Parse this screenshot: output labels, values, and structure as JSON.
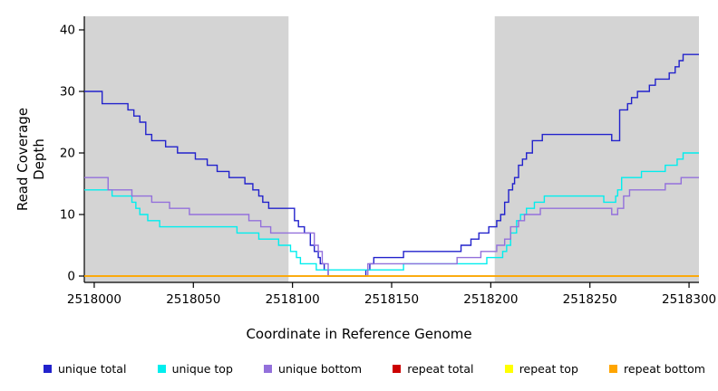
{
  "chart_data": {
    "type": "line",
    "subtype": "step-after",
    "title": "",
    "xlabel": "Coordinate in Reference Genome",
    "ylabel": "Read Coverage Depth",
    "xlim": [
      2517995,
      2518305
    ],
    "ylim": [
      0,
      40
    ],
    "x_ticks": [
      2518000,
      2518050,
      2518100,
      2518150,
      2518200,
      2518250,
      2518300
    ],
    "y_ticks": [
      0,
      10,
      20,
      30,
      40
    ],
    "grid": false,
    "legend_position": "bottom",
    "shaded_regions": [
      {
        "x0": 2517995,
        "x1": 2518098,
        "color": "#d4d4d4"
      },
      {
        "x0": 2518202,
        "x1": 2518305,
        "color": "#d4d4d4"
      }
    ],
    "series": [
      {
        "name": "unique total",
        "color": "#2222CC",
        "points": [
          [
            2517995,
            30
          ],
          [
            2518004,
            28
          ],
          [
            2518017,
            27
          ],
          [
            2518020,
            26
          ],
          [
            2518023,
            25
          ],
          [
            2518026,
            23
          ],
          [
            2518029,
            22
          ],
          [
            2518036,
            21
          ],
          [
            2518042,
            20
          ],
          [
            2518051,
            19
          ],
          [
            2518057,
            18
          ],
          [
            2518062,
            17
          ],
          [
            2518068,
            16
          ],
          [
            2518076,
            15
          ],
          [
            2518080,
            14
          ],
          [
            2518083,
            13
          ],
          [
            2518085,
            12
          ],
          [
            2518088,
            11
          ],
          [
            2518101,
            9
          ],
          [
            2518103,
            8
          ],
          [
            2518106,
            7
          ],
          [
            2518109,
            5
          ],
          [
            2518111,
            4
          ],
          [
            2518113,
            3
          ],
          [
            2518114,
            2
          ],
          [
            2518116,
            1
          ],
          [
            2518118,
            0
          ],
          [
            2518137,
            1
          ],
          [
            2518139,
            2
          ],
          [
            2518141,
            3
          ],
          [
            2518156,
            4
          ],
          [
            2518185,
            5
          ],
          [
            2518190,
            6
          ],
          [
            2518194,
            7
          ],
          [
            2518199,
            8
          ],
          [
            2518203,
            9
          ],
          [
            2518205,
            10
          ],
          [
            2518207,
            12
          ],
          [
            2518209,
            14
          ],
          [
            2518211,
            15
          ],
          [
            2518212,
            16
          ],
          [
            2518214,
            18
          ],
          [
            2518216,
            19
          ],
          [
            2518218,
            20
          ],
          [
            2518221,
            22
          ],
          [
            2518226,
            23
          ],
          [
            2518261,
            22
          ],
          [
            2518265,
            27
          ],
          [
            2518269,
            28
          ],
          [
            2518271,
            29
          ],
          [
            2518274,
            30
          ],
          [
            2518280,
            31
          ],
          [
            2518283,
            32
          ],
          [
            2518290,
            33
          ],
          [
            2518293,
            34
          ],
          [
            2518295,
            35
          ],
          [
            2518297,
            36
          ]
        ]
      },
      {
        "name": "unique top",
        "color": "#00EEEE",
        "points": [
          [
            2517995,
            14
          ],
          [
            2518009,
            13
          ],
          [
            2518019,
            12
          ],
          [
            2518021,
            11
          ],
          [
            2518023,
            10
          ],
          [
            2518027,
            9
          ],
          [
            2518033,
            8
          ],
          [
            2518072,
            7
          ],
          [
            2518083,
            6
          ],
          [
            2518093,
            5
          ],
          [
            2518099,
            4
          ],
          [
            2518102,
            3
          ],
          [
            2518104,
            2
          ],
          [
            2518112,
            1
          ],
          [
            2518156,
            2
          ],
          [
            2518198,
            3
          ],
          [
            2518206,
            4
          ],
          [
            2518208,
            5
          ],
          [
            2518210,
            7
          ],
          [
            2518213,
            9
          ],
          [
            2518215,
            10
          ],
          [
            2518218,
            11
          ],
          [
            2518222,
            12
          ],
          [
            2518227,
            13
          ],
          [
            2518257,
            12
          ],
          [
            2518263,
            13
          ],
          [
            2518264,
            14
          ],
          [
            2518266,
            16
          ],
          [
            2518276,
            17
          ],
          [
            2518288,
            18
          ],
          [
            2518294,
            19
          ],
          [
            2518297,
            20
          ]
        ]
      },
      {
        "name": "unique bottom",
        "color": "#9370DB",
        "points": [
          [
            2517995,
            16
          ],
          [
            2518007,
            14
          ],
          [
            2518019,
            13
          ],
          [
            2518029,
            12
          ],
          [
            2518038,
            11
          ],
          [
            2518048,
            10
          ],
          [
            2518078,
            9
          ],
          [
            2518084,
            8
          ],
          [
            2518089,
            7
          ],
          [
            2518111,
            5
          ],
          [
            2518113,
            4
          ],
          [
            2518115,
            2
          ],
          [
            2518118,
            0
          ],
          [
            2518138,
            2
          ],
          [
            2518183,
            3
          ],
          [
            2518195,
            4
          ],
          [
            2518203,
            5
          ],
          [
            2518207,
            6
          ],
          [
            2518210,
            8
          ],
          [
            2518214,
            9
          ],
          [
            2518217,
            10
          ],
          [
            2518225,
            11
          ],
          [
            2518261,
            10
          ],
          [
            2518264,
            11
          ],
          [
            2518267,
            13
          ],
          [
            2518270,
            14
          ],
          [
            2518288,
            15
          ],
          [
            2518296,
            16
          ]
        ]
      },
      {
        "name": "repeat total",
        "color": "#CC0000",
        "points": [
          [
            2517995,
            0
          ]
        ]
      },
      {
        "name": "repeat top",
        "color": "#FFFF00",
        "points": [
          [
            2517995,
            0
          ]
        ]
      },
      {
        "name": "repeat bottom",
        "color": "#FFA500",
        "points": [
          [
            2517995,
            0
          ]
        ]
      }
    ]
  }
}
